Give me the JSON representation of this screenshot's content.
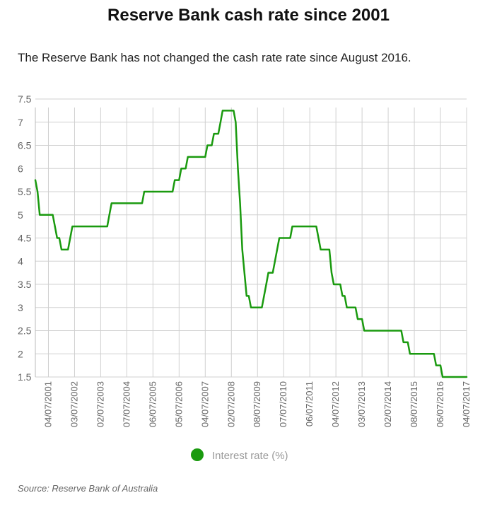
{
  "colors": {
    "series": "#1a9a0f",
    "grid": "#d0d0d0",
    "axis": "#bbbbbb"
  },
  "chart_data": {
    "type": "line",
    "title": "Reserve Bank cash rate since 2001",
    "subtitle": "The Reserve Bank has not changed the cash rate rate since August 2016.",
    "source": "Source: Reserve Bank of Australia",
    "xlabel": "",
    "ylabel": "",
    "ylim": [
      1.5,
      7.5
    ],
    "yticks": [
      "1.5",
      "2",
      "2.5",
      "3",
      "3.5",
      "4",
      "4.5",
      "5",
      "5.5",
      "6",
      "6.5",
      "7",
      "7.5"
    ],
    "xlim": [
      "2001-01",
      "2017-07"
    ],
    "grid": true,
    "legend": "bottom-center",
    "xtick_labels": [
      {
        "date": "2001-07",
        "label": "04/07/2001"
      },
      {
        "date": "2002-07",
        "label": "03/07/2002"
      },
      {
        "date": "2003-07",
        "label": "02/07/2003"
      },
      {
        "date": "2004-07",
        "label": "07/07/2004"
      },
      {
        "date": "2005-07",
        "label": "06/07/2005"
      },
      {
        "date": "2006-07",
        "label": "05/07/2006"
      },
      {
        "date": "2007-07",
        "label": "04/07/2007"
      },
      {
        "date": "2008-07",
        "label": "02/07/2008"
      },
      {
        "date": "2009-07",
        "label": "08/07/2009"
      },
      {
        "date": "2010-07",
        "label": "07/07/2010"
      },
      {
        "date": "2011-07",
        "label": "06/07/2011"
      },
      {
        "date": "2012-07",
        "label": "04/07/2012"
      },
      {
        "date": "2013-07",
        "label": "03/07/2013"
      },
      {
        "date": "2014-07",
        "label": "02/07/2014"
      },
      {
        "date": "2015-07",
        "label": "08/07/2015"
      },
      {
        "date": "2016-07",
        "label": "06/07/2016"
      },
      {
        "date": "2017-07",
        "label": "04/07/2017"
      }
    ],
    "series": [
      {
        "name": "Interest rate (%)",
        "points": [
          [
            "2001-01",
            5.75
          ],
          [
            "2001-02",
            5.5
          ],
          [
            "2001-03",
            5.0
          ],
          [
            "2001-09",
            5.0
          ],
          [
            "2001-10",
            4.75
          ],
          [
            "2001-11",
            4.5
          ],
          [
            "2001-12",
            4.5
          ],
          [
            "2002-01",
            4.25
          ],
          [
            "2002-04",
            4.25
          ],
          [
            "2002-05",
            4.5
          ],
          [
            "2002-06",
            4.75
          ],
          [
            "2003-10",
            4.75
          ],
          [
            "2003-11",
            5.0
          ],
          [
            "2003-12",
            5.25
          ],
          [
            "2005-02",
            5.25
          ],
          [
            "2005-03",
            5.5
          ],
          [
            "2006-04",
            5.5
          ],
          [
            "2006-05",
            5.75
          ],
          [
            "2006-07",
            5.75
          ],
          [
            "2006-08",
            6.0
          ],
          [
            "2006-10",
            6.0
          ],
          [
            "2006-11",
            6.25
          ],
          [
            "2007-07",
            6.25
          ],
          [
            "2007-08",
            6.5
          ],
          [
            "2007-10",
            6.5
          ],
          [
            "2007-11",
            6.75
          ],
          [
            "2008-01",
            6.75
          ],
          [
            "2008-02",
            7.0
          ],
          [
            "2008-03",
            7.25
          ],
          [
            "2008-08",
            7.25
          ],
          [
            "2008-09",
            7.0
          ],
          [
            "2008-10",
            6.0
          ],
          [
            "2008-11",
            5.25
          ],
          [
            "2008-12",
            4.25
          ],
          [
            "2009-02",
            3.25
          ],
          [
            "2009-03",
            3.25
          ],
          [
            "2009-04",
            3.0
          ],
          [
            "2009-09",
            3.0
          ],
          [
            "2009-10",
            3.25
          ],
          [
            "2009-11",
            3.5
          ],
          [
            "2009-12",
            3.75
          ],
          [
            "2010-02",
            3.75
          ],
          [
            "2010-03",
            4.0
          ],
          [
            "2010-04",
            4.25
          ],
          [
            "2010-05",
            4.5
          ],
          [
            "2010-10",
            4.5
          ],
          [
            "2010-11",
            4.75
          ],
          [
            "2011-10",
            4.75
          ],
          [
            "2011-11",
            4.5
          ],
          [
            "2011-12",
            4.25
          ],
          [
            "2012-04",
            4.25
          ],
          [
            "2012-05",
            3.75
          ],
          [
            "2012-06",
            3.5
          ],
          [
            "2012-09",
            3.5
          ],
          [
            "2012-10",
            3.25
          ],
          [
            "2012-11",
            3.25
          ],
          [
            "2012-12",
            3.0
          ],
          [
            "2013-04",
            3.0
          ],
          [
            "2013-05",
            2.75
          ],
          [
            "2013-07",
            2.75
          ],
          [
            "2013-08",
            2.5
          ],
          [
            "2015-01",
            2.5
          ],
          [
            "2015-02",
            2.25
          ],
          [
            "2015-04",
            2.25
          ],
          [
            "2015-05",
            2.0
          ],
          [
            "2016-04",
            2.0
          ],
          [
            "2016-05",
            1.75
          ],
          [
            "2016-07",
            1.75
          ],
          [
            "2016-08",
            1.5
          ],
          [
            "2017-07",
            1.5
          ]
        ]
      }
    ]
  }
}
